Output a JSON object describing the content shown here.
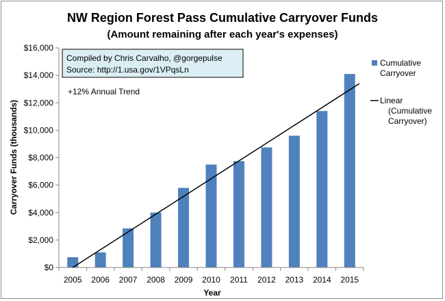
{
  "chart_data": {
    "type": "bar",
    "title": "NW Region Forest Pass Cumulative Carryover Funds",
    "subtitle": "(Amount remaining after each year's expenses)",
    "xlabel": "Year",
    "ylabel": "Carryover Funds (thousands)",
    "categories": [
      "2005",
      "2006",
      "2007",
      "2008",
      "2009",
      "2010",
      "2011",
      "2012",
      "2013",
      "2014",
      "2015"
    ],
    "series": [
      {
        "name": "Cumulative Carryover",
        "values": [
          750,
          1100,
          2850,
          4000,
          5800,
          7500,
          7750,
          8750,
          9600,
          11400,
          14100
        ],
        "color": "#4f81bd"
      }
    ],
    "trendline": {
      "name": "Linear (Cumulative Carryover)",
      "legend_lines": [
        "Linear",
        "(Cumulative",
        "Carryover)"
      ],
      "start_value": 0,
      "end_value": 13400,
      "color": "#000000"
    },
    "ylim": [
      0,
      16000
    ],
    "yticks": [
      0,
      2000,
      4000,
      6000,
      8000,
      10000,
      12000,
      14000,
      16000
    ],
    "ytick_labels": [
      "$0",
      "$2,000",
      "$4,000",
      "$6,000",
      "$8,000",
      "$10,000",
      "$12,000",
      "$14,000",
      "$16,000"
    ],
    "grid": false,
    "legend_position": "right",
    "legend_series_lines": [
      "Cumulative",
      "Carryover"
    ],
    "annotations": {
      "credit_line1": "Compiled by Chris Carvalho, @gorgepulse",
      "credit_line2": "Source: http://1.usa.gov/1VPqsLn",
      "trend_note": "+12% Annual Trend"
    },
    "note_box_color": "#daeef3"
  }
}
